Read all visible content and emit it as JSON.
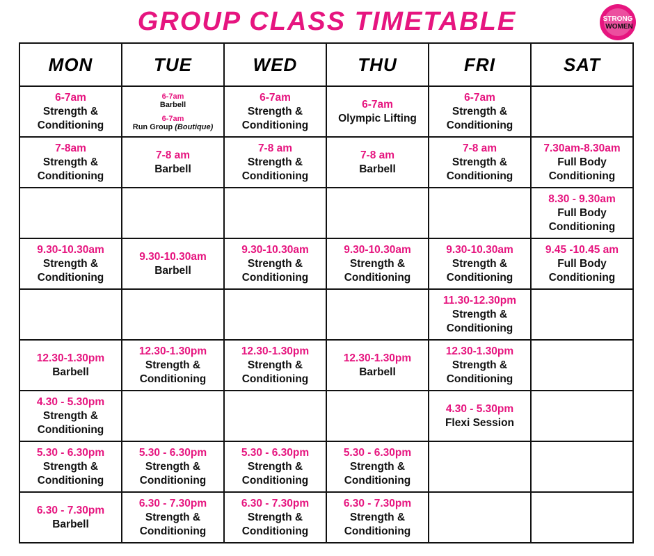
{
  "header": {
    "title": "GROUP CLASS TIMETABLE",
    "logo": [
      "STRONG",
      "WOMEN"
    ]
  },
  "table": {
    "days": [
      "MON",
      "TUE",
      "WED",
      "THU",
      "FRI",
      "SAT"
    ],
    "rows": [
      [
        [
          {
            "time": "6-7am",
            "name": "Strength & Conditioning"
          }
        ],
        [
          {
            "time": "6-7am",
            "name": "Barbell"
          },
          {
            "time": "6-7am",
            "name": "Run Group",
            "note": "(Boutique)"
          }
        ],
        [
          {
            "time": "6-7am",
            "name": "Strength & Conditioning"
          }
        ],
        [
          {
            "time": "6-7am",
            "name": "Olympic Lifting"
          }
        ],
        [
          {
            "time": "6-7am",
            "name": "Strength & Conditioning"
          }
        ],
        []
      ],
      [
        [
          {
            "time": "7-8am",
            "name": "Strength & Conditioning"
          }
        ],
        [
          {
            "time": "7-8 am",
            "name": "Barbell"
          }
        ],
        [
          {
            "time": "7-8 am",
            "name": "Strength & Conditioning"
          }
        ],
        [
          {
            "time": "7-8 am",
            "name": "Barbell"
          }
        ],
        [
          {
            "time": "7-8 am",
            "name": "Strength & Conditioning"
          }
        ],
        [
          {
            "time": "7.30am-8.30am",
            "name": "Full Body Conditioning"
          }
        ]
      ],
      [
        [],
        [],
        [],
        [],
        [],
        [
          {
            "time": "8.30 - 9.30am",
            "name": "Full Body Conditioning"
          }
        ]
      ],
      [
        [
          {
            "time": "9.30-10.30am",
            "name": "Strength & Conditioning"
          }
        ],
        [
          {
            "time": "9.30-10.30am",
            "name": "Barbell"
          }
        ],
        [
          {
            "time": "9.30-10.30am",
            "name": "Strength & Conditioning"
          }
        ],
        [
          {
            "time": "9.30-10.30am",
            "name": "Strength & Conditioning"
          }
        ],
        [
          {
            "time": "9.30-10.30am",
            "name": "Strength & Conditioning"
          }
        ],
        [
          {
            "time": "9.45 -10.45 am",
            "name": "Full Body Conditioning"
          }
        ]
      ],
      [
        [],
        [],
        [],
        [],
        [
          {
            "time": "11.30-12.30pm",
            "name": "Strength & Conditioning"
          }
        ],
        []
      ],
      [
        [
          {
            "time": "12.30-1.30pm",
            "name": "Barbell"
          }
        ],
        [
          {
            "time": "12.30-1.30pm",
            "name": "Strength & Conditioning"
          }
        ],
        [
          {
            "time": "12.30-1.30pm",
            "name": "Strength & Conditioning"
          }
        ],
        [
          {
            "time": "12.30-1.30pm",
            "name": "Barbell"
          }
        ],
        [
          {
            "time": "12.30-1.30pm",
            "name": "Strength & Conditioning"
          }
        ],
        []
      ],
      [
        [
          {
            "time": "4.30 - 5.30pm",
            "name": "Strength & Conditioning"
          }
        ],
        [],
        [],
        [],
        [
          {
            "time": "4.30 - 5.30pm",
            "name": "Flexi Session"
          }
        ],
        []
      ],
      [
        [
          {
            "time": "5.30 - 6.30pm",
            "name": "Strength & Conditioning"
          }
        ],
        [
          {
            "time": "5.30 - 6.30pm",
            "name": "Strength & Conditioning"
          }
        ],
        [
          {
            "time": "5.30 - 6.30pm",
            "name": "Strength & Conditioning"
          }
        ],
        [
          {
            "time": "5.30 - 6.30pm",
            "name": "Strength & Conditioning"
          }
        ],
        [],
        []
      ],
      [
        [
          {
            "time": "6.30 - 7.30pm",
            "name": "Barbell"
          }
        ],
        [
          {
            "time": "6.30 - 7.30pm",
            "name": "Strength & Conditioning"
          }
        ],
        [
          {
            "time": "6.30 - 7.30pm",
            "name": "Strength & Conditioning"
          }
        ],
        [
          {
            "time": "6.30 - 7.30pm",
            "name": "Strength & Conditioning"
          }
        ],
        [],
        []
      ]
    ]
  }
}
